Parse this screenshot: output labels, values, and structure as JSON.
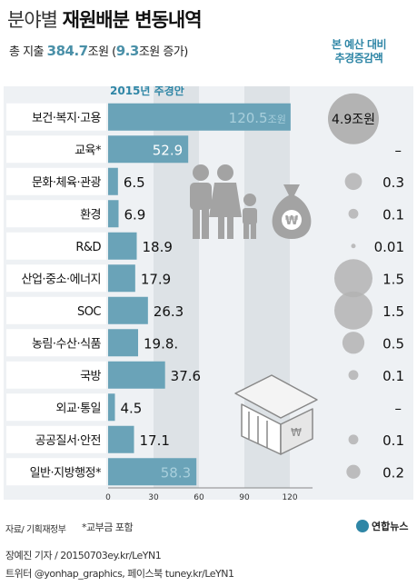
{
  "header": {
    "title_light": "분야별",
    "title_bold": "재원배분 변동내역",
    "subtitle_prefix": "총 지출",
    "subtitle_total": "384.7",
    "subtitle_mid": "조원 (",
    "subtitle_increase": "9.3",
    "subtitle_suffix": "조원 증가)",
    "right_header_line1": "본 예산 대비",
    "right_header_line2": "추경증감액"
  },
  "colors": {
    "bar": "#6aa3b8",
    "bar_label_highlight": "#a8cfdc",
    "panel_bg": "#eef1f4",
    "band": "#dde2e6",
    "circle": "#b3b3b3",
    "label_box_bg": "#ffffff",
    "accent": "#2f86a6",
    "icon": "#a3a3a3"
  },
  "chart_data": {
    "type": "bar",
    "orientation": "horizontal",
    "series_label": "2015년 추경안",
    "categories": [
      "보건·복지·고용",
      "교육*",
      "문화·체육·관광",
      "환경",
      "R&D",
      "산업·중소·에너지",
      "SOC",
      "농림·수산·식품",
      "국방",
      "외교·통일",
      "공공질서·안전",
      "일반·지방행정*"
    ],
    "values": [
      120.5,
      52.9,
      6.5,
      6.9,
      18.9,
      17.9,
      26.3,
      19.8,
      37.6,
      4.5,
      17.1,
      58.3
    ],
    "value_labels": [
      "120.5",
      "52.9",
      "6.5",
      "6.9",
      "18.9",
      "17.9",
      "26.3",
      "19.8.",
      "37.6",
      "4.5",
      "17.1",
      "58.3"
    ],
    "top_value_unit": "조원",
    "change_labels": [
      "4.9조원",
      "–",
      "0.3",
      "0.1",
      "0.01",
      "1.5",
      "1.5",
      "0.5",
      "0.1",
      "–",
      "0.1",
      "0.2"
    ],
    "change_values": [
      4.9,
      null,
      0.3,
      0.1,
      0.01,
      1.5,
      1.5,
      0.5,
      0.1,
      null,
      0.1,
      0.2
    ],
    "x_ticks": [
      "0",
      "30",
      "60",
      "90",
      "120"
    ],
    "x_tick_values": [
      0,
      30,
      60,
      90,
      120
    ],
    "xlim": [
      0,
      135
    ],
    "shaded_bands": [
      [
        30,
        60
      ],
      [
        90,
        120
      ]
    ]
  },
  "footer": {
    "source": "자료/ 기획재정부",
    "note": "*교부금 포함",
    "logo": "연합뉴스",
    "credit_line1": "장예진 기자 / 20150703ey.kr/LeYN1",
    "credit_line2": "트위터 @yonhap_graphics, 페이스북 tuney.kr/LeYN1"
  }
}
